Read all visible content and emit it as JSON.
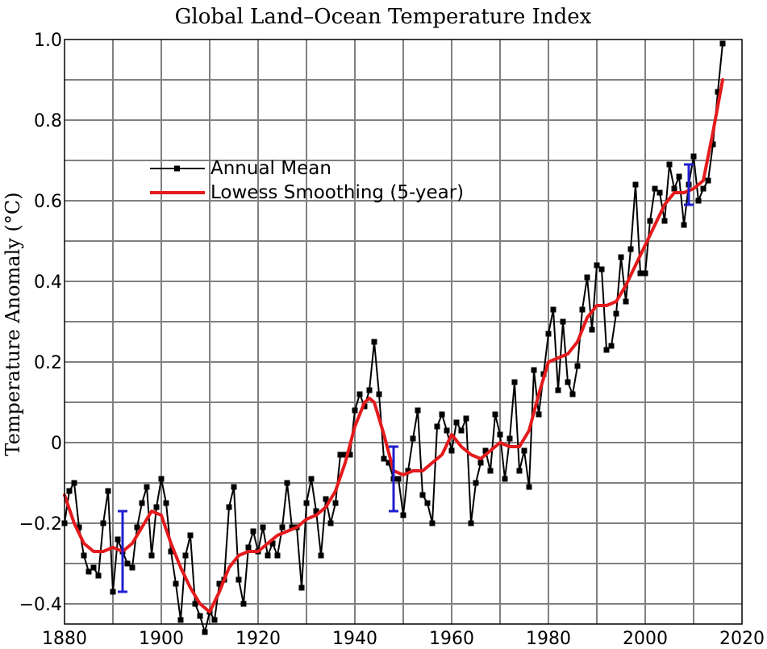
{
  "chart_data": {
    "type": "line",
    "title": "Global Land–Ocean Temperature Index",
    "xlabel": "",
    "ylabel": "Temperature Anomaly (°C)",
    "xlim": [
      1880,
      2020
    ],
    "ylim": [
      -0.45,
      1.0
    ],
    "grid": true,
    "legend_position": "upper-left",
    "x_ticks": [
      1880,
      1900,
      1920,
      1940,
      1960,
      1980,
      2000,
      2020
    ],
    "x_tick_labels": [
      "1880",
      "1900",
      "1920",
      "1940",
      "1960",
      "1980",
      "2000",
      "2020"
    ],
    "y_ticks": [
      -0.4,
      -0.2,
      0,
      0.2,
      0.4,
      0.6,
      0.8,
      1.0
    ],
    "y_tick_labels": [
      "−0.4",
      "−0.2",
      "0",
      "0.2",
      "0.4",
      "0.6",
      "0.8",
      "1.0"
    ],
    "series": [
      {
        "name": "Annual Mean",
        "color": "#000000",
        "marker": "square",
        "x": [
          1880,
          1881,
          1882,
          1883,
          1884,
          1885,
          1886,
          1887,
          1888,
          1889,
          1890,
          1891,
          1892,
          1893,
          1894,
          1895,
          1896,
          1897,
          1898,
          1899,
          1900,
          1901,
          1902,
          1903,
          1904,
          1905,
          1906,
          1907,
          1908,
          1909,
          1910,
          1911,
          1912,
          1913,
          1914,
          1915,
          1916,
          1917,
          1918,
          1919,
          1920,
          1921,
          1922,
          1923,
          1924,
          1925,
          1926,
          1927,
          1928,
          1929,
          1930,
          1931,
          1932,
          1933,
          1934,
          1935,
          1936,
          1937,
          1938,
          1939,
          1940,
          1941,
          1942,
          1943,
          1944,
          1945,
          1946,
          1947,
          1948,
          1949,
          1950,
          1951,
          1952,
          1953,
          1954,
          1955,
          1956,
          1957,
          1958,
          1959,
          1960,
          1961,
          1962,
          1963,
          1964,
          1965,
          1966,
          1967,
          1968,
          1969,
          1970,
          1971,
          1972,
          1973,
          1974,
          1975,
          1976,
          1977,
          1978,
          1979,
          1980,
          1981,
          1982,
          1983,
          1984,
          1985,
          1986,
          1987,
          1988,
          1989,
          1990,
          1991,
          1992,
          1993,
          1994,
          1995,
          1996,
          1997,
          1998,
          1999,
          2000,
          2001,
          2002,
          2003,
          2004,
          2005,
          2006,
          2007,
          2008,
          2009,
          2010,
          2011,
          2012,
          2013,
          2014,
          2015,
          2016
        ],
        "y": [
          -0.2,
          -0.12,
          -0.1,
          -0.21,
          -0.28,
          -0.32,
          -0.31,
          -0.33,
          -0.2,
          -0.12,
          -0.37,
          -0.24,
          -0.27,
          -0.3,
          -0.31,
          -0.21,
          -0.15,
          -0.11,
          -0.28,
          -0.16,
          -0.09,
          -0.15,
          -0.27,
          -0.35,
          -0.44,
          -0.28,
          -0.23,
          -0.4,
          -0.43,
          -0.47,
          -0.42,
          -0.44,
          -0.35,
          -0.34,
          -0.16,
          -0.11,
          -0.34,
          -0.4,
          -0.26,
          -0.22,
          -0.27,
          -0.21,
          -0.28,
          -0.25,
          -0.28,
          -0.21,
          -0.1,
          -0.21,
          -0.21,
          -0.36,
          -0.15,
          -0.09,
          -0.17,
          -0.28,
          -0.14,
          -0.2,
          -0.15,
          -0.03,
          -0.03,
          -0.03,
          0.08,
          0.12,
          0.09,
          0.13,
          0.25,
          0.12,
          -0.04,
          -0.05,
          -0.09,
          -0.09,
          -0.18,
          -0.07,
          0.01,
          0.08,
          -0.13,
          -0.15,
          -0.2,
          0.04,
          0.07,
          0.03,
          -0.02,
          0.05,
          0.03,
          0.06,
          -0.2,
          -0.1,
          -0.05,
          -0.02,
          -0.07,
          0.07,
          0.02,
          -0.09,
          0.01,
          0.15,
          -0.07,
          -0.02,
          -0.11,
          0.18,
          0.07,
          0.17,
          0.27,
          0.33,
          0.13,
          0.3,
          0.15,
          0.12,
          0.19,
          0.33,
          0.41,
          0.28,
          0.44,
          0.43,
          0.23,
          0.24,
          0.32,
          0.46,
          0.35,
          0.48,
          0.64,
          0.42,
          0.42,
          0.55,
          0.63,
          0.62,
          0.55,
          0.69,
          0.63,
          0.66,
          0.54,
          0.64,
          0.71,
          0.6,
          0.63,
          0.65,
          0.74,
          0.87,
          0.99
        ]
      },
      {
        "name": "Lowess Smoothing (5-year)",
        "color": "#e41a1c",
        "x": [
          1880,
          1882,
          1884,
          1886,
          1888,
          1890,
          1892,
          1894,
          1896,
          1898,
          1900,
          1902,
          1904,
          1906,
          1908,
          1910,
          1912,
          1914,
          1916,
          1918,
          1920,
          1922,
          1924,
          1926,
          1928,
          1930,
          1932,
          1934,
          1936,
          1938,
          1940,
          1942,
          1943,
          1944,
          1946,
          1948,
          1950,
          1952,
          1954,
          1956,
          1958,
          1960,
          1962,
          1964,
          1966,
          1968,
          1970,
          1972,
          1974,
          1976,
          1978,
          1980,
          1982,
          1984,
          1986,
          1988,
          1990,
          1992,
          1994,
          1996,
          1998,
          2000,
          2002,
          2004,
          2006,
          2008,
          2010,
          2012,
          2014,
          2016
        ],
        "y": [
          -0.13,
          -0.2,
          -0.25,
          -0.27,
          -0.27,
          -0.26,
          -0.27,
          -0.25,
          -0.21,
          -0.17,
          -0.18,
          -0.25,
          -0.31,
          -0.36,
          -0.4,
          -0.42,
          -0.37,
          -0.31,
          -0.28,
          -0.27,
          -0.27,
          -0.25,
          -0.23,
          -0.22,
          -0.21,
          -0.19,
          -0.18,
          -0.16,
          -0.12,
          -0.05,
          0.04,
          0.1,
          0.11,
          0.1,
          0.02,
          -0.07,
          -0.08,
          -0.07,
          -0.07,
          -0.05,
          -0.03,
          0.02,
          -0.01,
          -0.03,
          -0.04,
          -0.02,
          0.0,
          -0.01,
          -0.01,
          0.03,
          0.12,
          0.2,
          0.21,
          0.22,
          0.25,
          0.31,
          0.34,
          0.34,
          0.35,
          0.39,
          0.44,
          0.49,
          0.54,
          0.59,
          0.62,
          0.62,
          0.63,
          0.65,
          0.77,
          0.9
        ]
      }
    ],
    "error_bars": [
      {
        "x": 1892,
        "low": -0.37,
        "high": -0.17
      },
      {
        "x": 1948,
        "low": -0.17,
        "high": -0.01
      },
      {
        "x": 2009,
        "low": 0.59,
        "high": 0.69
      }
    ],
    "error_bar_color": "#1f1fd1"
  }
}
